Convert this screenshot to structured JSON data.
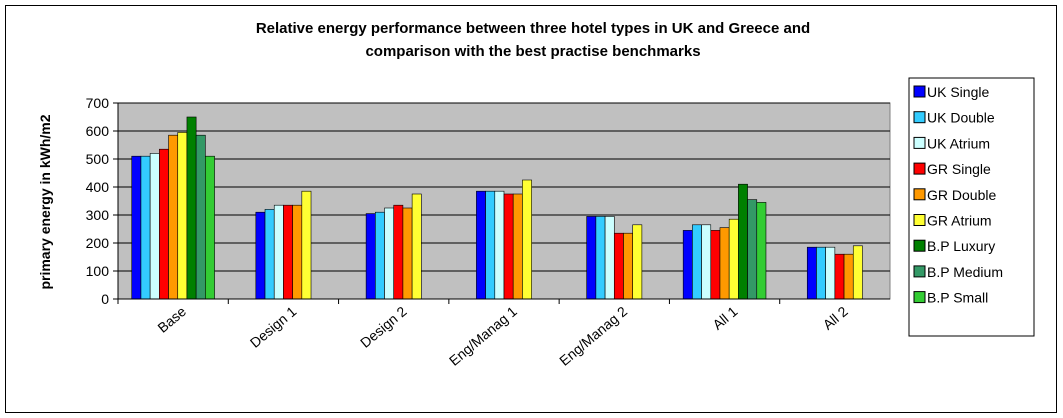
{
  "chart_data": {
    "type": "bar",
    "title": "Relative energy performance between three hotel types in UK and Greece and comparison with the best practise benchmarks",
    "title_lines": [
      "Relative energy performance between three hotel types in UK and Greece and",
      "comparison with the best practise benchmarks"
    ],
    "xlabel": "",
    "ylabel": "primary energy in kWh/m2",
    "ylim": [
      0,
      700
    ],
    "yticks": [
      "700",
      "600",
      "500",
      "400",
      "300",
      "200",
      "100",
      "0"
    ],
    "grid": true,
    "legend_position": "right",
    "categories": [
      "Base",
      "Design 1",
      "Design 2",
      "Eng/Manag 1",
      "Eng/Manag 2",
      "All 1",
      "All 2"
    ],
    "series": [
      {
        "name": "UK Single",
        "color": "#0000ff",
        "values": [
          510,
          310,
          305,
          385,
          295,
          245,
          185
        ]
      },
      {
        "name": "UK Double",
        "color": "#33ccff",
        "values": [
          510,
          320,
          310,
          385,
          295,
          265,
          185
        ]
      },
      {
        "name": "UK Atrium",
        "color": "#ccffff",
        "values": [
          520,
          335,
          325,
          385,
          295,
          265,
          185
        ]
      },
      {
        "name": "GR Single",
        "color": "#ff0000",
        "values": [
          535,
          335,
          335,
          375,
          235,
          245,
          160
        ]
      },
      {
        "name": "GR Double",
        "color": "#ff9900",
        "values": [
          585,
          335,
          325,
          375,
          235,
          255,
          160
        ]
      },
      {
        "name": "GR Atrium",
        "color": "#ffff33",
        "values": [
          595,
          385,
          375,
          425,
          265,
          285,
          190
        ]
      },
      {
        "name": "B.P Luxury",
        "color": "#008000",
        "values": [
          650,
          null,
          null,
          null,
          null,
          410,
          null
        ]
      },
      {
        "name": "B.P Medium",
        "color": "#339966",
        "values": [
          585,
          null,
          null,
          null,
          null,
          355,
          null
        ]
      },
      {
        "name": "B.P Small",
        "color": "#33cc33",
        "values": [
          510,
          null,
          null,
          null,
          null,
          345,
          null
        ]
      }
    ]
  }
}
